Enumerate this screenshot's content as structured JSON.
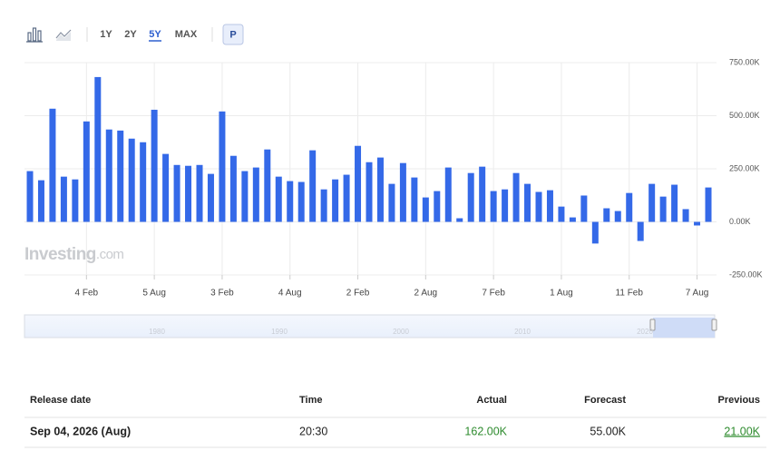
{
  "toolbar": {
    "ranges": [
      "1Y",
      "2Y",
      "5Y",
      "MAX"
    ],
    "mode": "P"
  },
  "chart_data": {
    "type": "bar",
    "categories": [
      null,
      null,
      null,
      null,
      null,
      "4 Feb",
      null,
      null,
      null,
      null,
      null,
      "5 Aug",
      null,
      null,
      null,
      null,
      null,
      "3 Feb",
      null,
      null,
      null,
      null,
      null,
      "4 Aug",
      null,
      null,
      null,
      null,
      null,
      "2 Feb",
      null,
      null,
      null,
      null,
      null,
      "2 Aug",
      null,
      null,
      null,
      null,
      null,
      "7 Feb",
      null,
      null,
      null,
      null,
      null,
      "1 Aug",
      null,
      null,
      null,
      null,
      null,
      "11 Feb",
      null,
      null,
      null,
      null,
      null,
      "7 Aug",
      null
    ],
    "values": [
      239,
      196,
      533,
      213,
      200,
      473,
      682,
      435,
      430,
      392,
      375,
      528,
      320,
      268,
      264,
      268,
      226,
      520,
      311,
      239,
      256,
      341,
      213,
      192,
      188,
      337,
      153,
      200,
      222,
      358,
      281,
      303,
      179,
      277,
      209,
      115,
      145,
      256,
      17,
      230,
      260,
      145,
      153,
      230,
      179,
      141,
      149,
      72,
      21,
      124,
      -102,
      64,
      51,
      136,
      -90,
      179,
      119,
      175,
      60,
      -17,
      162
    ],
    "color": "#3469e8",
    "ylim": [
      -250,
      750
    ],
    "yticks": [
      {
        "value": -250,
        "label": "-250.00K"
      },
      {
        "value": 0,
        "label": "0.00K"
      },
      {
        "value": 250,
        "label": "250.00K"
      },
      {
        "value": 500,
        "label": "500.00K"
      },
      {
        "value": 750,
        "label": "750.00K"
      }
    ],
    "grid": true
  },
  "watermark": {
    "brand": "Investing",
    "suffix": ".com"
  },
  "navigator": {
    "labels": [
      "1980",
      "1990",
      "2000",
      "2010",
      "2020"
    ]
  },
  "table": {
    "headers": [
      "Release date",
      "Time",
      "Actual",
      "Forecast",
      "Previous"
    ],
    "rows": [
      [
        "Sep 04, 2026 (Aug)",
        "20:30",
        "162.00K",
        "55.00K",
        "21.00K"
      ]
    ]
  }
}
